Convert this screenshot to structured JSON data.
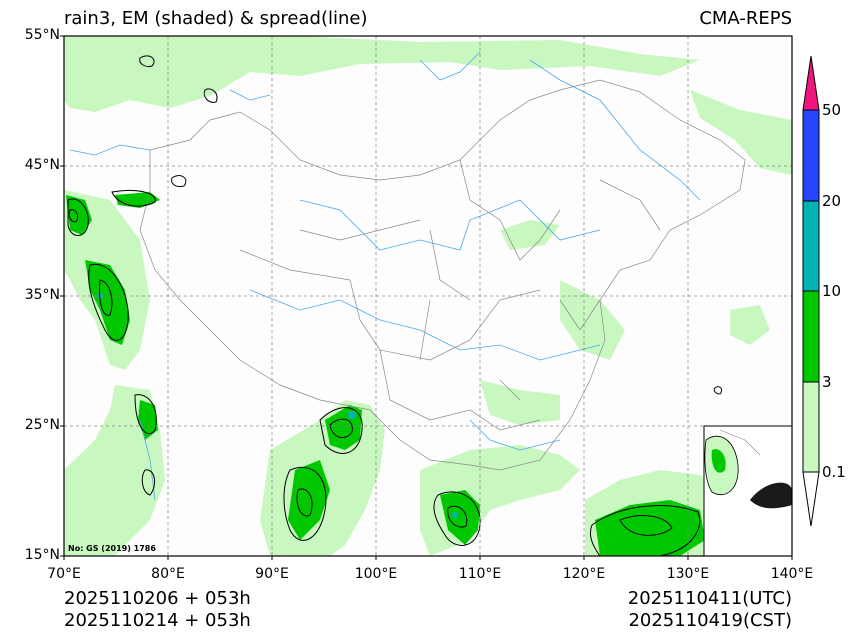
{
  "header": {
    "title_left": "rain3, EM (shaded) & spread(line)",
    "title_right": "CMA-REPS"
  },
  "axes": {
    "lat_labels": [
      "55°N",
      "45°N",
      "35°N",
      "25°N",
      "15°N"
    ],
    "lon_labels": [
      "70°E",
      "80°E",
      "90°E",
      "100°E",
      "110°E",
      "120°E",
      "130°E",
      "140°E"
    ]
  },
  "colorbar": {
    "levels": [
      "0.1",
      "3",
      "10",
      "20",
      "50"
    ],
    "colors": [
      "#ffffff",
      "#c8f7c0",
      "#00c800",
      "#00b4b4",
      "#2846ff",
      "#f0147d"
    ]
  },
  "map_note": "No: GS (2019) 1786",
  "footer": {
    "init_utc": "2025110206  +  053h",
    "init_cst": "2025110214  +  053h",
    "valid_utc": "2025110411(UTC)",
    "valid_cst": "2025110419(CST)"
  }
}
